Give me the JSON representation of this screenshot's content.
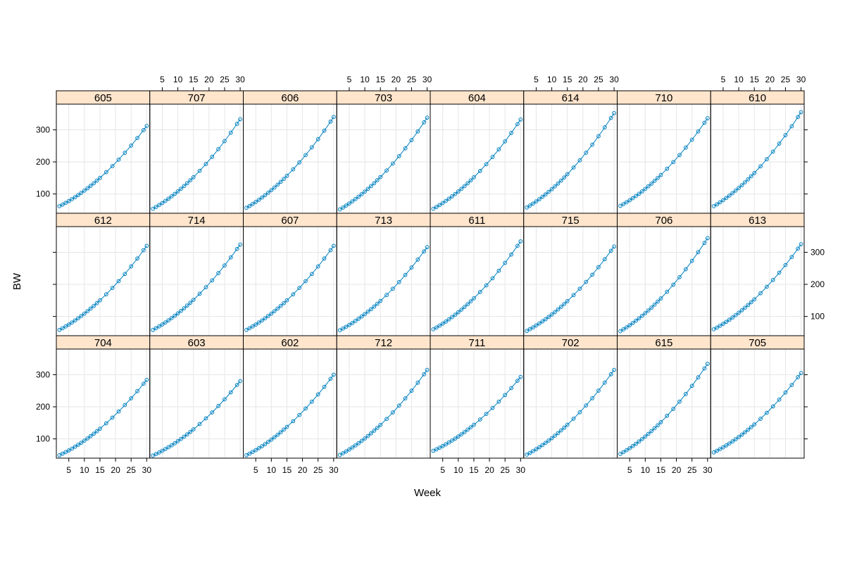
{
  "chart_data": {
    "type": "scatter",
    "layout": {
      "columns": 8,
      "rows": 3
    },
    "xlabel": "Week",
    "ylabel": "BW",
    "xlim": [
      1,
      31
    ],
    "ylim": [
      40,
      380
    ],
    "xticks": [
      5,
      10,
      15,
      20,
      25,
      30
    ],
    "yticks": [
      100,
      200,
      300
    ],
    "grid": true,
    "point_style": "open-circle",
    "line_style": "smooth",
    "colors": {
      "series": "#0080c0",
      "strip": "#ffe5cc",
      "grid": "#e6e6e6",
      "frame": "#000000"
    },
    "x": [
      2,
      3,
      4,
      5,
      6,
      7,
      8,
      9,
      10,
      11,
      12,
      13,
      14,
      15,
      17,
      19,
      21,
      23,
      25,
      27,
      29,
      30
    ],
    "panels": [
      {
        "label": "605",
        "start": 62,
        "end": 312
      },
      {
        "label": "707",
        "start": 54,
        "end": 333
      },
      {
        "label": "606",
        "start": 57,
        "end": 340
      },
      {
        "label": "703",
        "start": 52,
        "end": 338
      },
      {
        "label": "604",
        "start": 54,
        "end": 332
      },
      {
        "label": "614",
        "start": 58,
        "end": 352
      },
      {
        "label": "710",
        "start": 63,
        "end": 336
      },
      {
        "label": "610",
        "start": 62,
        "end": 355
      },
      {
        "label": "612",
        "start": 58,
        "end": 320
      },
      {
        "label": "714",
        "start": 58,
        "end": 324
      },
      {
        "label": "607",
        "start": 58,
        "end": 320
      },
      {
        "label": "713",
        "start": 57,
        "end": 316
      },
      {
        "label": "611",
        "start": 60,
        "end": 334
      },
      {
        "label": "715",
        "start": 55,
        "end": 318
      },
      {
        "label": "706",
        "start": 54,
        "end": 344
      },
      {
        "label": "613",
        "start": 60,
        "end": 325
      },
      {
        "label": "704",
        "start": 49,
        "end": 284
      },
      {
        "label": "603",
        "start": 48,
        "end": 280
      },
      {
        "label": "602",
        "start": 49,
        "end": 300
      },
      {
        "label": "712",
        "start": 50,
        "end": 315
      },
      {
        "label": "711",
        "start": 63,
        "end": 293
      },
      {
        "label": "702",
        "start": 51,
        "end": 315
      },
      {
        "label": "615",
        "start": 53,
        "end": 334
      },
      {
        "label": "705",
        "start": 58,
        "end": 305
      }
    ]
  }
}
